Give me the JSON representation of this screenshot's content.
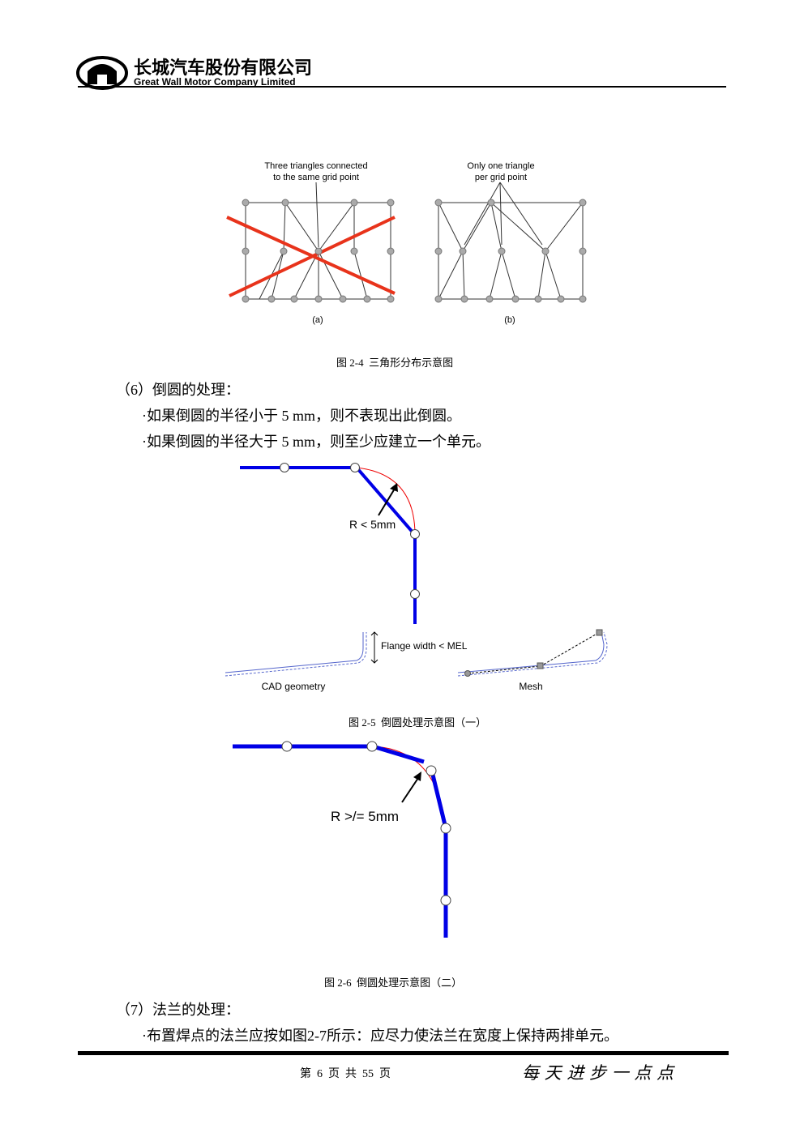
{
  "header": {
    "company_cn": "长城汽车股份有限公司",
    "company_en": "Great Wall Motor Company Limited"
  },
  "figure_2_4": {
    "label_a_line1": "Three triangles connected",
    "label_a_line2": "to the same grid point",
    "label_b_line1": "Only one triangle",
    "label_b_line2": "per grid point",
    "sub_a": "(a)",
    "sub_b": "(b)",
    "caption": "图 2-4  三角形分布示意图"
  },
  "section_6": {
    "heading": "（6）倒圆的处理：",
    "item1": "·如果倒圆的半径小于 5 mm，则不表现出此倒圆。",
    "item2": "·如果倒圆的半径大于 5 mm，则至少应建立一个单元。"
  },
  "figure_2_5": {
    "radius_label": "R < 5mm",
    "flange_label": "Flange width < MEL",
    "cad_label": "CAD geometry",
    "mesh_label": "Mesh",
    "caption": "图 2-5  倒圆处理示意图（一）"
  },
  "figure_2_6": {
    "radius_label": "R >/= 5mm",
    "caption": "图 2-6  倒圆处理示意图（二）"
  },
  "section_7": {
    "heading": "（7）法兰的处理：",
    "item1": "·布置焊点的法兰应按如图2-7所示：应尽力使法兰在宽度上保持两排单元。"
  },
  "footer": {
    "page": "第  6  页  共  55  页",
    "motto": "每 天 进 步 一 点 点"
  }
}
